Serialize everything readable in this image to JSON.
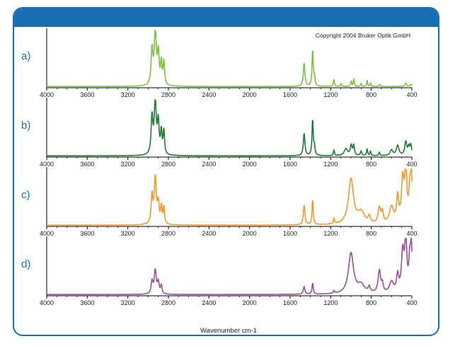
{
  "copyright": "Copyright 2004 Bruker Optik GmbH",
  "xlabel": "Wavenumber cm-1",
  "chart_data": {
    "type": "line",
    "title": "",
    "xlabel": "Wavenumber cm-1",
    "ylabel": "",
    "xlim": [
      4000,
      400
    ],
    "x_reversed": true,
    "xticks": [
      4000,
      3600,
      3200,
      2800,
      2400,
      2000,
      1600,
      1200,
      800,
      400
    ],
    "grid": false,
    "panels": [
      {
        "label": "a)",
        "color": "#7dc142",
        "peaks": [
          [
            2962,
            0.62,
            10
          ],
          [
            2930,
            0.95,
            12
          ],
          [
            2900,
            0.55,
            10
          ],
          [
            2870,
            0.4,
            8
          ],
          [
            2845,
            0.42,
            8
          ],
          [
            1462,
            0.42,
            9
          ],
          [
            1378,
            0.65,
            7
          ],
          [
            1360,
            0.15,
            6
          ],
          [
            1168,
            0.12,
            6
          ],
          [
            1100,
            0.05,
            6
          ],
          [
            998,
            0.1,
            5
          ],
          [
            973,
            0.14,
            5
          ],
          [
            900,
            0.06,
            5
          ],
          [
            841,
            0.11,
            5
          ],
          [
            808,
            0.06,
            5
          ],
          [
            720,
            0.04,
            5
          ],
          [
            460,
            0.06,
            8
          ],
          [
            410,
            0.04,
            8
          ]
        ]
      },
      {
        "label": "b)",
        "color": "#1f7a36",
        "peaks": [
          [
            2962,
            0.65,
            10
          ],
          [
            2930,
            0.95,
            12
          ],
          [
            2900,
            0.55,
            10
          ],
          [
            2870,
            0.4,
            8
          ],
          [
            2845,
            0.42,
            8
          ],
          [
            1462,
            0.4,
            9
          ],
          [
            1378,
            0.65,
            7
          ],
          [
            1360,
            0.15,
            6
          ],
          [
            1168,
            0.1,
            6
          ],
          [
            1050,
            0.12,
            20
          ],
          [
            998,
            0.18,
            10
          ],
          [
            973,
            0.18,
            8
          ],
          [
            900,
            0.08,
            8
          ],
          [
            841,
            0.12,
            6
          ],
          [
            808,
            0.08,
            6
          ],
          [
            720,
            0.06,
            6
          ],
          [
            600,
            0.1,
            15
          ],
          [
            540,
            0.18,
            15
          ],
          [
            460,
            0.24,
            12
          ],
          [
            430,
            0.15,
            10
          ],
          [
            410,
            0.18,
            8
          ]
        ]
      },
      {
        "label": "c)",
        "color": "#f0992e",
        "peaks": [
          [
            2962,
            0.5,
            10
          ],
          [
            2930,
            0.82,
            12
          ],
          [
            2900,
            0.35,
            10
          ],
          [
            2870,
            0.3,
            8
          ],
          [
            2845,
            0.3,
            8
          ],
          [
            1462,
            0.35,
            9
          ],
          [
            1378,
            0.45,
            7
          ],
          [
            1168,
            0.1,
            6
          ],
          [
            1000,
            0.8,
            30
          ],
          [
            900,
            0.2,
            40
          ],
          [
            820,
            0.12,
            12
          ],
          [
            720,
            0.28,
            15
          ],
          [
            690,
            0.2,
            10
          ],
          [
            600,
            0.3,
            25
          ],
          [
            540,
            0.45,
            12
          ],
          [
            490,
            0.75,
            15
          ],
          [
            460,
            0.95,
            12
          ],
          [
            420,
            0.6,
            12
          ],
          [
            405,
            0.75,
            8
          ]
        ]
      },
      {
        "label": "d)",
        "color": "#9b4c9e",
        "peaks": [
          [
            2962,
            0.22,
            10
          ],
          [
            2930,
            0.42,
            12
          ],
          [
            2900,
            0.2,
            10
          ],
          [
            2870,
            0.15,
            8
          ],
          [
            1462,
            0.14,
            9
          ],
          [
            1378,
            0.2,
            7
          ],
          [
            1168,
            0.05,
            6
          ],
          [
            1000,
            0.72,
            30
          ],
          [
            900,
            0.15,
            40
          ],
          [
            820,
            0.1,
            12
          ],
          [
            720,
            0.4,
            15
          ],
          [
            690,
            0.14,
            10
          ],
          [
            600,
            0.2,
            25
          ],
          [
            540,
            0.3,
            12
          ],
          [
            490,
            0.7,
            15
          ],
          [
            460,
            0.95,
            12
          ],
          [
            420,
            0.58,
            12
          ],
          [
            405,
            0.75,
            8
          ]
        ]
      }
    ]
  }
}
